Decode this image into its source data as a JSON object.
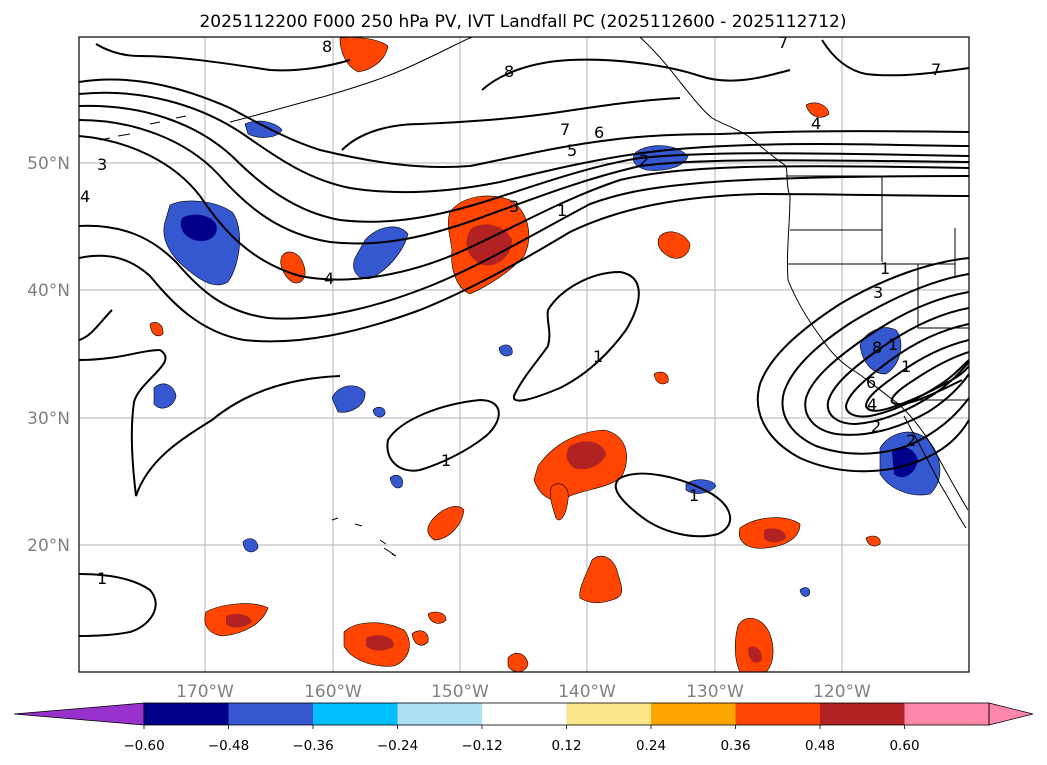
{
  "title": "2025112200 F000 250 hPa PV, IVT Landfall PC (2025112600 - 2025112712)",
  "map": {
    "lat_labels": [
      "50°N",
      "40°N",
      "30°N",
      "20°N"
    ],
    "lon_labels": [
      "170°W",
      "160°W",
      "150°W",
      "140°W",
      "130°W",
      "120°W"
    ],
    "contour_labels": [
      "3",
      "4",
      "4",
      "8",
      "8",
      "7",
      "6",
      "5",
      "3",
      "1",
      "2",
      "7",
      "7",
      "4",
      "1",
      "1",
      "1",
      "1",
      "1",
      "3",
      "8",
      "6",
      "4",
      "2",
      "2",
      "1",
      "1"
    ]
  },
  "colorbar": {
    "tick_labels": [
      "−0.60",
      "−0.48",
      "−0.36",
      "−0.24",
      "−0.12",
      "0.12",
      "0.24",
      "0.36",
      "0.48",
      "0.60"
    ],
    "colors": [
      "#9932cc",
      "#00008b",
      "#3557cf",
      "#00bfff",
      "#aee0f5",
      "#ffffff",
      "#fde68a",
      "#ffa500",
      "#ff4500",
      "#b22222",
      "#ff88aa"
    ]
  }
}
